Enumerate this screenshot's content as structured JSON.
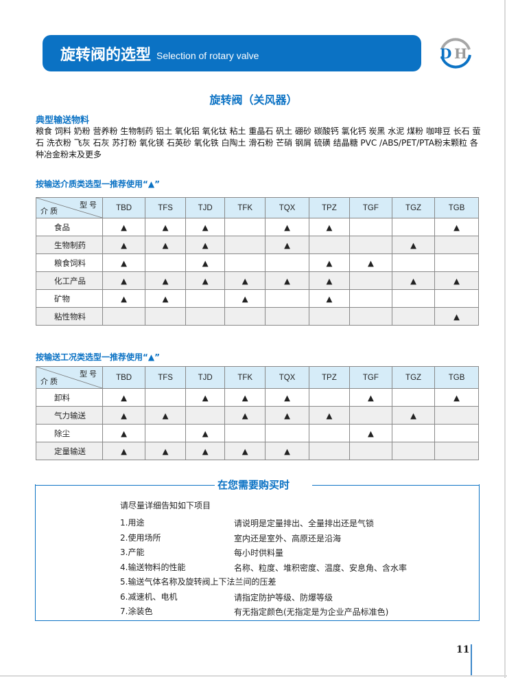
{
  "header": {
    "title_cn": "旋转阀的选型",
    "title_en": "Selection of rotary valve",
    "logo_text": "DH"
  },
  "section_title": "旋转阀（关风器）",
  "materials": {
    "heading": "典型输送物料",
    "text": "粮食 饲料 奶粉 营养粉 生物制药 铝土 氧化铝 氧化钛 粘土 重晶石 矾土 硼砂 碳酸钙 氯化钙 炭黑 水泥 煤粉 咖啡豆 长石 萤石 洗衣粉 飞灰 石灰 苏打粉 氧化镁 石英砂 氧化铁 白陶土 滑石粉 芒硝 钢屑 硫磺 结晶糖 PVC /ABS/PET/PTA粉末颗粒 各种冶金粉末及更多"
  },
  "table1": {
    "heading": "按输送介质类选型一推荐使用“▲”",
    "corner_top": "型 号",
    "corner_bottom": "介 质",
    "columns": [
      "TBD",
      "TFS",
      "TJD",
      "TFK",
      "TQX",
      "TPZ",
      "TGF",
      "TGZ",
      "TGB"
    ],
    "rows": [
      {
        "label": "食品",
        "cells": [
          "▲",
          "▲",
          "▲",
          "",
          "▲",
          "▲",
          "",
          "",
          "▲"
        ]
      },
      {
        "label": "生物制药",
        "cells": [
          "▲",
          "▲",
          "▲",
          "",
          "▲",
          "",
          "",
          "▲",
          ""
        ]
      },
      {
        "label": "粮食饲料",
        "cells": [
          "▲",
          "",
          "▲",
          "",
          "",
          "▲",
          "▲",
          "",
          ""
        ]
      },
      {
        "label": "化工产品",
        "cells": [
          "▲",
          "▲",
          "▲",
          "▲",
          "▲",
          "▲",
          "",
          "▲",
          "▲"
        ]
      },
      {
        "label": "矿物",
        "cells": [
          "▲",
          "▲",
          "",
          "▲",
          "",
          "▲",
          "",
          "",
          ""
        ]
      },
      {
        "label": "粘性物料",
        "cells": [
          "",
          "",
          "",
          "",
          "",
          "",
          "",
          "",
          "▲"
        ]
      }
    ]
  },
  "table2": {
    "heading": "按输送工况类选型一推荐使用“▲”",
    "corner_top": "型 号",
    "corner_bottom": "介 质",
    "columns": [
      "TBD",
      "TFS",
      "TJD",
      "TFK",
      "TQX",
      "TPZ",
      "TGF",
      "TGZ",
      "TGB"
    ],
    "rows": [
      {
        "label": "卸料",
        "cells": [
          "▲",
          "",
          "▲",
          "▲",
          "▲",
          "",
          "▲",
          "",
          "▲"
        ]
      },
      {
        "label": "气力输送",
        "cells": [
          "▲",
          "▲",
          "",
          "▲",
          "▲",
          "▲",
          "",
          "▲",
          ""
        ]
      },
      {
        "label": "除尘",
        "cells": [
          "▲",
          "",
          "▲",
          "",
          "",
          "",
          "▲",
          "",
          ""
        ]
      },
      {
        "label": "定量输送",
        "cells": [
          "▲",
          "▲",
          "▲",
          "▲",
          "▲",
          "",
          "",
          "",
          ""
        ]
      }
    ]
  },
  "purchase": {
    "title": "在您需要购买时",
    "intro": "请尽量详细告知如下项目",
    "items": [
      {
        "label": "1.用途",
        "desc": "请说明是定量排出、全量排出还是气锁"
      },
      {
        "label": "2.使用场所",
        "desc": "室内还是室外、高原还是沿海"
      },
      {
        "label": "3.产能",
        "desc": "每小时供料量"
      },
      {
        "label": "4.输送物料的性能",
        "desc": "名称、粒度、堆积密度、温度、安息角、含水率"
      },
      {
        "label": "5.输送气体名称及旋转阀上下法兰间的压差",
        "desc": ""
      },
      {
        "label": "6.减速机、电机",
        "desc": "请指定防护等级、防爆等级"
      },
      {
        "label": "7.涂装色",
        "desc": "有无指定颜色(无指定是为企业产品标准色)"
      }
    ]
  },
  "page_number": "11",
  "colors": {
    "brand_blue": "#0b72c4",
    "header_cell": "#d6ecf8",
    "alt_row": "#efefef"
  }
}
